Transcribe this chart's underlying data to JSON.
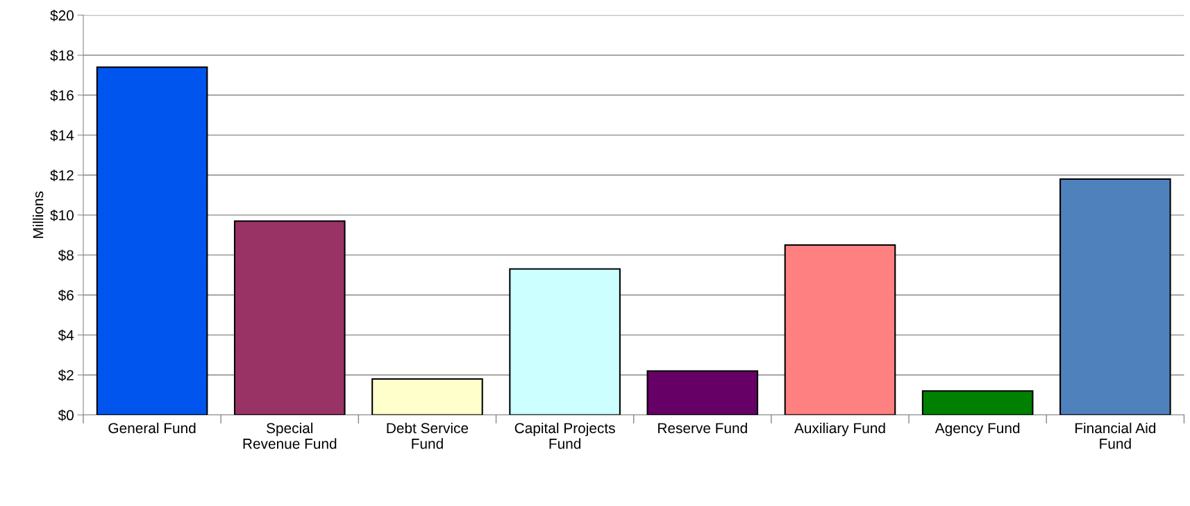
{
  "chart_data": {
    "type": "bar",
    "ylabel": "Millions",
    "categories": [
      "General Fund",
      "Special\nRevenue Fund",
      "Debt Service\nFund",
      "Capital Projects\nFund",
      "Reserve Fund",
      "Auxiliary Fund",
      "Agency Fund",
      "Financial Aid\nFund"
    ],
    "values": [
      17.4,
      9.7,
      1.8,
      7.3,
      2.2,
      8.5,
      1.2,
      11.8
    ],
    "colors": [
      "#0055ee",
      "#993366",
      "#ffffcc",
      "#ccffff",
      "#660066",
      "#ff8080",
      "#008000",
      "#4f81bd"
    ],
    "ylim": [
      0,
      20
    ],
    "yticks": [
      {
        "value": 0,
        "label": "$0"
      },
      {
        "value": 2,
        "label": "$2"
      },
      {
        "value": 4,
        "label": "$4"
      },
      {
        "value": 6,
        "label": "$6"
      },
      {
        "value": 8,
        "label": "$8"
      },
      {
        "value": 10,
        "label": "$10"
      },
      {
        "value": 12,
        "label": "$12"
      },
      {
        "value": 14,
        "label": "$14"
      },
      {
        "value": 16,
        "label": "$16"
      },
      {
        "value": 18,
        "label": "$18"
      },
      {
        "value": 20,
        "label": "$20"
      }
    ],
    "grid": "y",
    "legend": false
  }
}
